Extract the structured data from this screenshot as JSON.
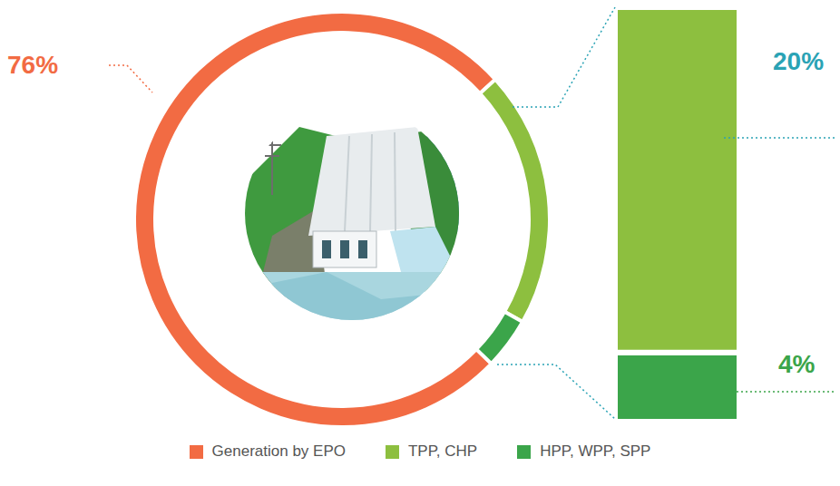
{
  "chart_data": {
    "type": "pie",
    "categories": [
      "Generation by EPO",
      "TPP, CHP",
      "HPP, WPP, SPP"
    ],
    "values": [
      76,
      20,
      4
    ],
    "value_labels": [
      "76%",
      "20%",
      "4%"
    ],
    "colors": [
      "#f26b43",
      "#8dbf3f",
      "#3ba54a"
    ],
    "data_labels": true,
    "legend": "bottom"
  }
}
